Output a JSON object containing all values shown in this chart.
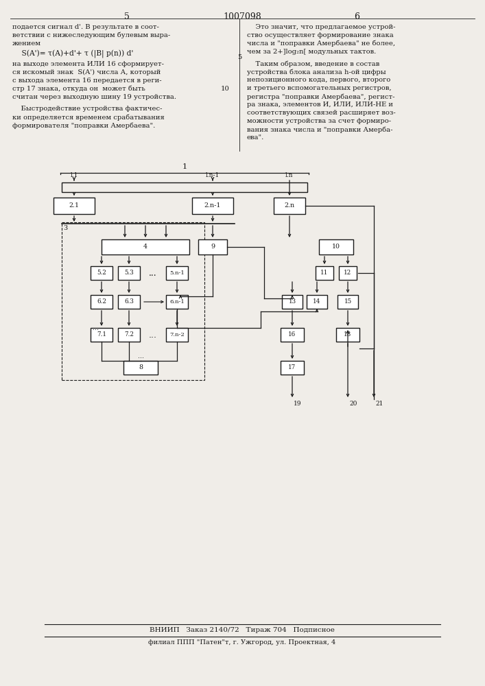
{
  "bg_color": "#f0ede8",
  "text_color": "#1a1a1a",
  "left_col_lines": [
    "подается сигнал d'. В результате в соот-",
    "ветствии с нижеследующим булевым выра-",
    "жением"
  ],
  "formula": "    S(A')= τ(A)+d'+ τ (|B| p(n)) d'",
  "left_col_lines2": [
    "на выходе элемента ИЛИ 16 сформирует-",
    "ся искомый знак  S(A') числа А, который",
    "с выхода элемента 16 передается в реги-",
    "стр 17 знака, откуда он  может быть",
    "считан через выходную шину 19 устройства."
  ],
  "left_col_num2": "10",
  "left_col_lines3": [
    "    Быстродействие устройства фактичес-",
    "ки определяется временем срабатывания",
    "формирователя \"поправки Амербаева\"."
  ],
  "right_col_lines": [
    "    Это значит, что предлагаемое устрой-",
    "ство осуществляет формирование знака",
    "числа и \"поправки Амербаева\" не более,",
    "чем за 2+]log₂n[ модульных тактов."
  ],
  "right_col_num": "5",
  "right_col_lines2": [
    "    Таким образом, введение в состав",
    "устройства блока анализа h-ой цифры",
    "непозиционного кода, первого, второго",
    "и третьего вспомогательных регистров,",
    "регистра \"поправки Амербаева\", регист-",
    "ра знака, элементов И, ИЛИ, ИЛИ-НЕ и",
    "соответствующих связей расширяет воз-",
    "можности устройства за счет формиро-",
    "вания знака числа и \"поправки Амерба-",
    "ева\"."
  ],
  "footer_line1": "ВНИИП   Заказ 2140/72   Тираж 704   Подписное",
  "footer_line2": "филиал ППП \"Патен\"т, г. Ужгород, ул. Проектная, 4"
}
